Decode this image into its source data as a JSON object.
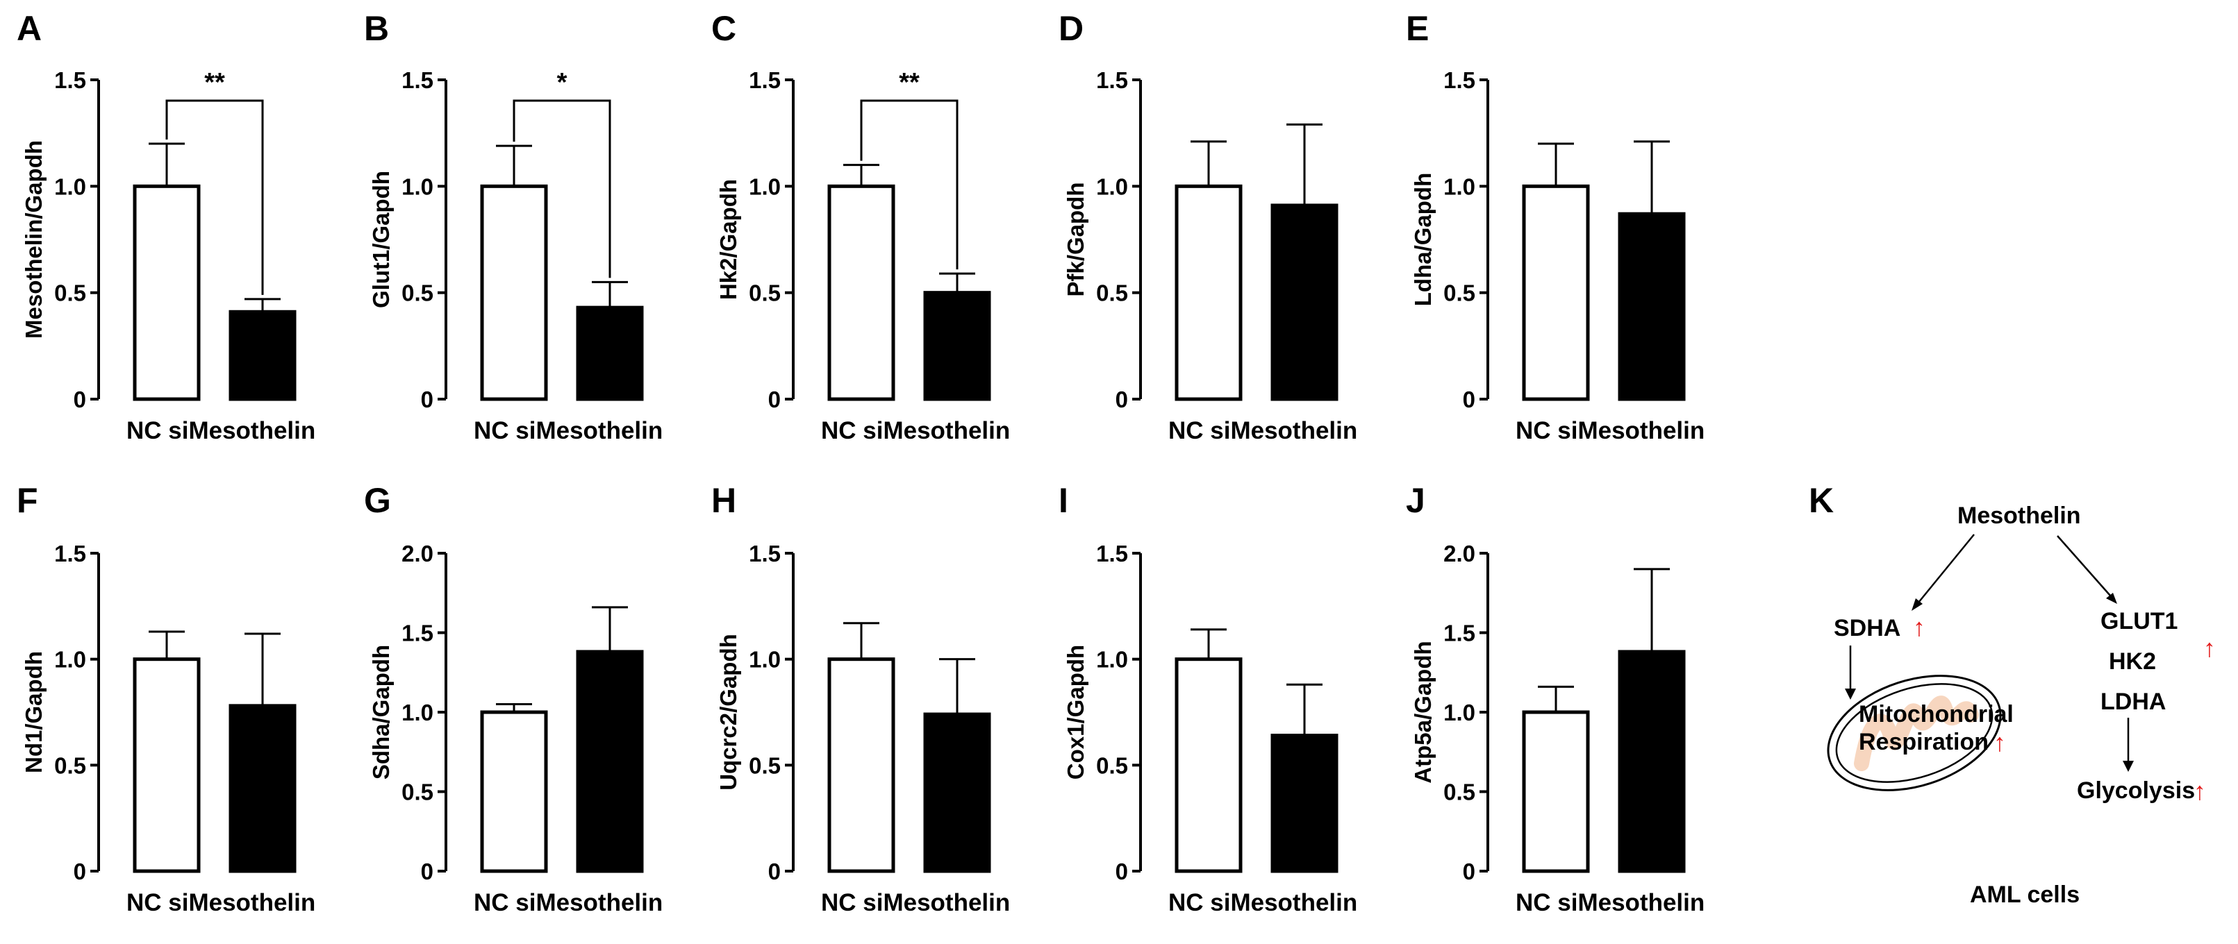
{
  "chart_data": [
    {
      "letter": "A",
      "type": "bar",
      "categories": [
        "NC",
        "siMesothelin"
      ],
      "category_label": "NC siMesothelin",
      "values": [
        1.0,
        0.41
      ],
      "errors": [
        0.2,
        0.06
      ],
      "ylabel": "Mesothelin/Gapdh",
      "ylim": [
        0,
        1.5
      ],
      "yticks": [
        "0",
        "0.5",
        "1.0",
        "1.5"
      ],
      "significance": "**"
    },
    {
      "letter": "B",
      "type": "bar",
      "categories": [
        "NC",
        "siMesothelin"
      ],
      "category_label": "NC siMesothelin",
      "values": [
        1.0,
        0.43
      ],
      "errors": [
        0.19,
        0.12
      ],
      "ylabel": "Glut1/Gapdh",
      "ylim": [
        0,
        1.5
      ],
      "yticks": [
        "0",
        "0.5",
        "1.0",
        "1.5"
      ],
      "significance": "*"
    },
    {
      "letter": "C",
      "type": "bar",
      "categories": [
        "NC",
        "siMesothelin"
      ],
      "category_label": "NC siMesothelin",
      "values": [
        1.0,
        0.5
      ],
      "errors": [
        0.1,
        0.09
      ],
      "ylabel": "Hk2/Gapdh",
      "ylim": [
        0,
        1.5
      ],
      "yticks": [
        "0",
        "0.5",
        "1.0",
        "1.5"
      ],
      "significance": "**"
    },
    {
      "letter": "D",
      "type": "bar",
      "categories": [
        "NC",
        "siMesothelin"
      ],
      "category_label": "NC siMesothelin",
      "values": [
        1.0,
        0.91
      ],
      "errors": [
        0.21,
        0.38
      ],
      "ylabel": "Pfk/Gapdh",
      "ylim": [
        0,
        1.5
      ],
      "yticks": [
        "0",
        "0.5",
        "1.0",
        "1.5"
      ],
      "significance": ""
    },
    {
      "letter": "E",
      "type": "bar",
      "categories": [
        "NC",
        "siMesothelin"
      ],
      "category_label": "NC siMesothelin",
      "values": [
        1.0,
        0.87
      ],
      "errors": [
        0.2,
        0.34
      ],
      "ylabel": "Ldha/Gapdh",
      "ylim": [
        0,
        1.5
      ],
      "yticks": [
        "0",
        "0.5",
        "1.0",
        "1.5"
      ],
      "significance": ""
    },
    {
      "letter": "F",
      "type": "bar",
      "categories": [
        "NC",
        "siMesothelin"
      ],
      "category_label": "NC siMesothelin",
      "values": [
        1.0,
        0.78
      ],
      "errors": [
        0.13,
        0.34
      ],
      "ylabel": "Nd1/Gapdh",
      "ylim": [
        0,
        1.5
      ],
      "yticks": [
        "0",
        "0.5",
        "1.0",
        "1.5"
      ],
      "significance": ""
    },
    {
      "letter": "G",
      "type": "bar",
      "categories": [
        "NC",
        "siMesothelin"
      ],
      "category_label": "NC siMesothelin",
      "values": [
        1.0,
        1.38
      ],
      "errors": [
        0.05,
        0.28
      ],
      "ylabel": "Sdha/Gapdh",
      "ylim": [
        0,
        2.0
      ],
      "yticks": [
        "0",
        "0.5",
        "1.0",
        "1.5",
        "2.0"
      ],
      "significance": ""
    },
    {
      "letter": "H",
      "type": "bar",
      "categories": [
        "NC",
        "siMesothelin"
      ],
      "category_label": "NC siMesothelin",
      "values": [
        1.0,
        0.74
      ],
      "errors": [
        0.17,
        0.26
      ],
      "ylabel": "Uqcrc2/Gapdh",
      "ylim": [
        0,
        1.5
      ],
      "yticks": [
        "0",
        "0.5",
        "1.0",
        "1.5"
      ],
      "significance": ""
    },
    {
      "letter": "I",
      "type": "bar",
      "categories": [
        "NC",
        "siMesothelin"
      ],
      "category_label": "NC siMesothelin",
      "values": [
        1.0,
        0.64
      ],
      "errors": [
        0.14,
        0.24
      ],
      "ylabel": "Cox1/Gapdh",
      "ylim": [
        0,
        1.5
      ],
      "yticks": [
        "0",
        "0.5",
        "1.0",
        "1.5"
      ],
      "significance": ""
    },
    {
      "letter": "J",
      "type": "bar",
      "categories": [
        "NC",
        "siMesothelin"
      ],
      "category_label": "NC siMesothelin",
      "values": [
        1.0,
        1.38
      ],
      "errors": [
        0.16,
        0.52
      ],
      "ylabel": "Atp5a/Gapdh",
      "ylim": [
        0,
        2.0
      ],
      "yticks": [
        "0",
        "0.5",
        "1.0",
        "1.5",
        "2.0"
      ],
      "significance": ""
    }
  ],
  "colors": {
    "nc_bar": "#ffffff",
    "si_bar": "#000000",
    "accent_arrow": "#e21a1a",
    "mito_fill": "#f6d2b8"
  },
  "diagram": {
    "letter": "K",
    "top": "Mesothelin",
    "sdha": "SDHA",
    "mito_line1": "Mitochondrial",
    "mito_line2": "Respiration",
    "glut1": "GLUT1",
    "hk2": "HK2",
    "ldha": "LDHA",
    "glycolysis": "Glycolysis",
    "bottom": "AML cells",
    "up_arrow": "↑"
  }
}
